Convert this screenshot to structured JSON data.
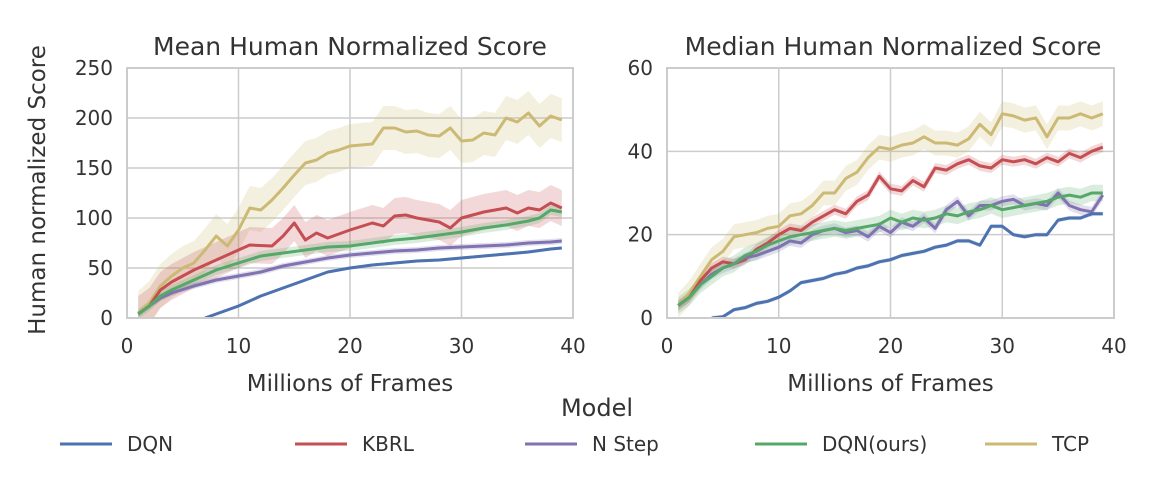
{
  "chart_data": [
    {
      "type": "line",
      "title": "Mean Human Normalized Score",
      "xlabel": "Millions of Frames",
      "ylabel": "Human normalized Score",
      "xlim": [
        0,
        40
      ],
      "ylim": [
        0,
        250
      ],
      "xticks": [
        "0",
        "10",
        "20",
        "30",
        "40"
      ],
      "yticks": [
        "0",
        "50",
        "100",
        "150",
        "200",
        "250"
      ],
      "grid": true,
      "series": [
        {
          "name": "DQN",
          "color": "#4c72b0",
          "x": [
            7,
            8,
            10,
            12,
            14,
            16,
            18,
            20,
            22,
            24,
            26,
            28,
            30,
            32,
            34,
            36,
            38,
            39
          ],
          "y": [
            0,
            4,
            12,
            22,
            30,
            38,
            46,
            50,
            53,
            55,
            57,
            58,
            60,
            62,
            64,
            66,
            69,
            70
          ]
        },
        {
          "name": "KBRL",
          "color": "#c44e52",
          "x": [
            1,
            2,
            3,
            4,
            6,
            8,
            10,
            11,
            13,
            14,
            15,
            16,
            17,
            18,
            20,
            22,
            23,
            24,
            25,
            26,
            28,
            29,
            30,
            32,
            34,
            35,
            36,
            37,
            38,
            39
          ],
          "y": [
            4,
            12,
            28,
            36,
            48,
            58,
            68,
            73,
            72,
            82,
            95,
            78,
            85,
            80,
            88,
            95,
            92,
            102,
            103,
            100,
            96,
            90,
            100,
            106,
            110,
            105,
            110,
            108,
            115,
            110
          ]
        },
        {
          "name": "N Step",
          "color": "#8172b2",
          "x": [
            1,
            2,
            3,
            4,
            6,
            8,
            10,
            12,
            14,
            16,
            18,
            20,
            22,
            24,
            26,
            28,
            30,
            32,
            34,
            36,
            38,
            39
          ],
          "y": [
            4,
            12,
            20,
            25,
            32,
            38,
            42,
            46,
            52,
            56,
            60,
            63,
            65,
            67,
            68,
            70,
            71,
            72,
            73,
            75,
            76,
            77
          ]
        },
        {
          "name": "DQN(ours)",
          "color": "#55a868",
          "x": [
            1,
            2,
            3,
            4,
            6,
            8,
            10,
            12,
            14,
            16,
            18,
            20,
            22,
            24,
            26,
            28,
            30,
            32,
            34,
            36,
            37,
            38,
            39
          ],
          "y": [
            4,
            12,
            22,
            28,
            38,
            48,
            55,
            62,
            65,
            68,
            71,
            72,
            75,
            78,
            80,
            83,
            86,
            90,
            93,
            97,
            100,
            108,
            106
          ]
        },
        {
          "name": "TCP",
          "color": "#ccb974",
          "x": [
            1,
            2,
            3,
            4,
            5,
            6,
            7,
            8,
            9,
            10,
            11,
            12,
            13,
            14,
            15,
            16,
            17,
            18,
            19,
            20,
            21,
            22,
            23,
            24,
            25,
            26,
            27,
            28,
            29,
            30,
            31,
            32,
            33,
            34,
            35,
            36,
            37,
            38,
            39
          ],
          "y": [
            5,
            15,
            32,
            42,
            50,
            55,
            68,
            82,
            72,
            88,
            110,
            108,
            118,
            130,
            143,
            155,
            158,
            165,
            168,
            172,
            173,
            174,
            190,
            190,
            186,
            187,
            183,
            182,
            190,
            177,
            178,
            185,
            183,
            200,
            196,
            205,
            192,
            202,
            198
          ]
        }
      ]
    },
    {
      "type": "line",
      "title": "Median Human Normalized Score",
      "xlabel": "Millions of Frames",
      "ylabel": "",
      "xlim": [
        0,
        40
      ],
      "ylim": [
        0,
        60
      ],
      "xticks": [
        "0",
        "10",
        "20",
        "30",
        "40"
      ],
      "yticks": [
        "0",
        "20",
        "40",
        "60"
      ],
      "grid": true,
      "series": [
        {
          "name": "DQN",
          "color": "#4c72b0",
          "x": [
            4,
            5,
            6,
            7,
            8,
            9,
            10,
            11,
            12,
            13,
            14,
            15,
            16,
            17,
            18,
            19,
            20,
            21,
            22,
            23,
            24,
            25,
            26,
            27,
            28,
            29,
            30,
            31,
            32,
            33,
            34,
            35,
            36,
            37,
            38,
            39
          ],
          "y": [
            0,
            0.3,
            2,
            2.5,
            3.5,
            4,
            5,
            6.5,
            8.5,
            9,
            9.5,
            10.5,
            11,
            12,
            12.5,
            13.5,
            14,
            15,
            15.5,
            16,
            17,
            17.5,
            18.5,
            18.5,
            17.5,
            22,
            22,
            20,
            19.5,
            20,
            20,
            23.5,
            24,
            24,
            25,
            25
          ]
        },
        {
          "name": "KBRL",
          "color": "#c44e52",
          "x": [
            1,
            2,
            3,
            4,
            5,
            6,
            7,
            8,
            9,
            10,
            11,
            12,
            13,
            14,
            15,
            16,
            17,
            18,
            19,
            20,
            21,
            22,
            23,
            24,
            25,
            26,
            27,
            28,
            29,
            30,
            31,
            32,
            33,
            34,
            35,
            36,
            37,
            38,
            39
          ],
          "y": [
            3,
            5,
            9,
            12,
            13.5,
            13,
            14,
            16.5,
            18,
            20,
            21.5,
            21,
            23,
            24.5,
            26,
            25,
            28,
            29.5,
            34,
            31,
            30.5,
            33,
            31.5,
            36,
            35.5,
            37,
            38,
            36.5,
            36,
            38,
            37.5,
            38,
            37,
            38.5,
            37.5,
            39.5,
            38.5,
            40,
            41
          ]
        },
        {
          "name": "N Step",
          "color": "#8172b2",
          "x": [
            1,
            2,
            3,
            4,
            5,
            6,
            7,
            8,
            9,
            10,
            11,
            12,
            13,
            14,
            15,
            16,
            17,
            18,
            19,
            20,
            21,
            22,
            23,
            24,
            25,
            26,
            27,
            28,
            29,
            30,
            31,
            32,
            33,
            34,
            35,
            36,
            37,
            38,
            39
          ],
          "y": [
            3,
            5,
            8,
            10.5,
            12,
            13,
            14.5,
            15,
            16,
            17,
            18.5,
            18,
            20,
            21,
            21.5,
            20.5,
            21,
            19.5,
            22,
            20.5,
            23,
            22,
            24,
            21.5,
            26,
            28,
            24.5,
            27,
            27,
            28,
            28.5,
            27,
            27.5,
            27,
            30,
            27,
            26,
            25.5,
            29.5
          ]
        },
        {
          "name": "DQN(ours)",
          "color": "#55a868",
          "x": [
            1,
            2,
            3,
            4,
            5,
            6,
            7,
            8,
            9,
            10,
            11,
            12,
            13,
            14,
            15,
            16,
            17,
            18,
            19,
            20,
            21,
            22,
            23,
            24,
            25,
            26,
            27,
            28,
            29,
            30,
            31,
            32,
            33,
            34,
            35,
            36,
            37,
            38,
            39
          ],
          "y": [
            3,
            5,
            8,
            10,
            12,
            13,
            15,
            16,
            17.5,
            18.5,
            19.5,
            20,
            20.5,
            21,
            21.5,
            21,
            21.5,
            22,
            22.5,
            24,
            23,
            24,
            23.5,
            24,
            25,
            24.5,
            25.5,
            26,
            27,
            26,
            26.5,
            27,
            27.5,
            28,
            29,
            29.5,
            29,
            30,
            30
          ]
        },
        {
          "name": "TCP",
          "color": "#ccb974",
          "x": [
            1,
            2,
            3,
            4,
            5,
            6,
            7,
            8,
            9,
            10,
            11,
            12,
            13,
            14,
            15,
            16,
            17,
            18,
            19,
            20,
            21,
            22,
            23,
            24,
            25,
            26,
            27,
            28,
            29,
            30,
            31,
            32,
            33,
            34,
            35,
            36,
            37,
            38,
            39
          ],
          "y": [
            3,
            6,
            10,
            14,
            16,
            19.5,
            20,
            20.5,
            21.5,
            22,
            24.5,
            25,
            27,
            30,
            30,
            33.5,
            35,
            38.5,
            41,
            40.5,
            41.5,
            42,
            43.5,
            42,
            42,
            41.5,
            43,
            46.5,
            44,
            49,
            48.5,
            47.5,
            48,
            43.5,
            48,
            48,
            49,
            48,
            49
          ]
        }
      ]
    }
  ],
  "legend": {
    "title": "Model",
    "placement": "bottom",
    "entries": [
      {
        "label": "DQN",
        "color": "#4c72b0"
      },
      {
        "label": "KBRL",
        "color": "#c44e52"
      },
      {
        "label": "N Step",
        "color": "#8172b2"
      },
      {
        "label": "DQN(ours)",
        "color": "#55a868"
      },
      {
        "label": "TCP",
        "color": "#ccb974"
      }
    ]
  }
}
